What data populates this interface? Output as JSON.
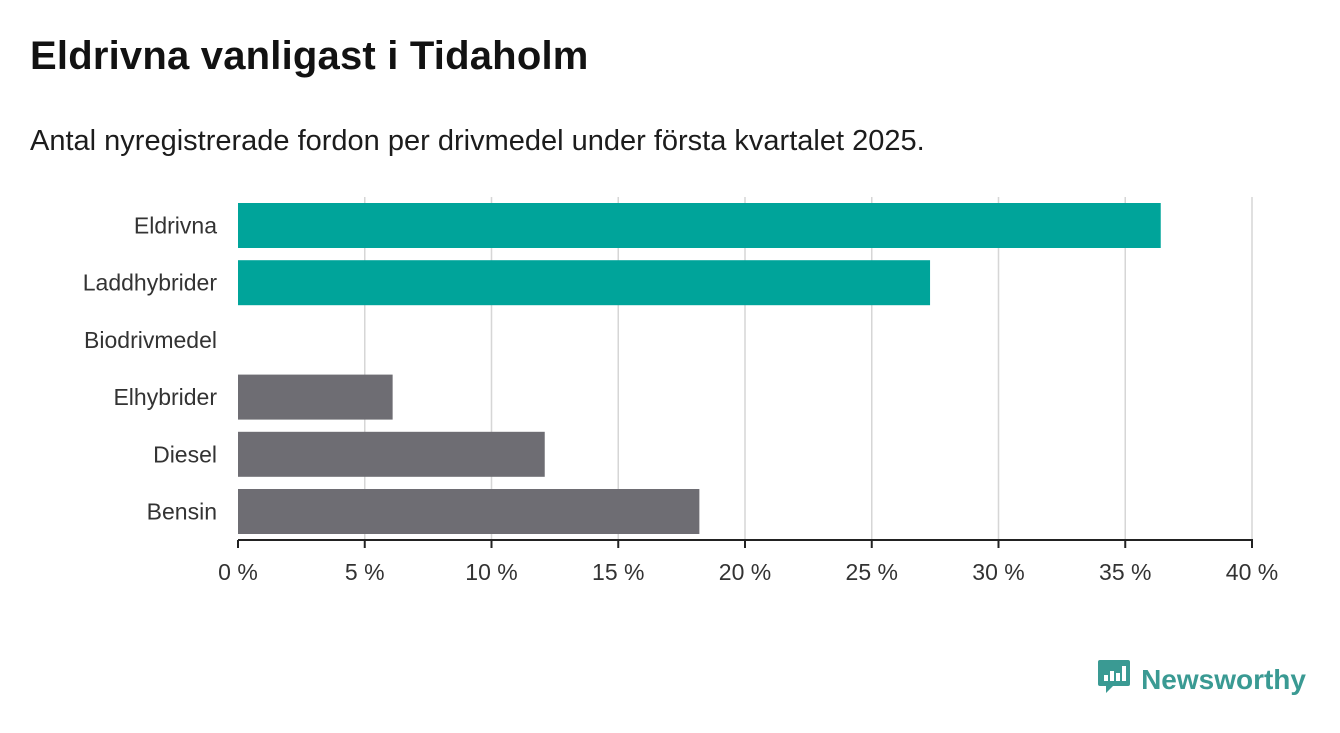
{
  "header": {
    "title": "Eldrivna vanligast i Tidaholm",
    "subtitle": "Antal nyregistrerade fordon per drivmedel under första kvartalet 2025."
  },
  "brand": {
    "name": "Newsworthy",
    "icon": "newsworthy-logo-icon",
    "color": "#3a9a93"
  },
  "colors": {
    "highlight": "#00a49a",
    "other": "#6e6d73",
    "grid": "#d6d6d6",
    "axis": "#222222"
  },
  "chart_data": {
    "type": "bar",
    "orientation": "horizontal",
    "categories": [
      "Eldrivna",
      "Laddhybrider",
      "Biodrivmedel",
      "Elhybrider",
      "Diesel",
      "Bensin"
    ],
    "values": [
      36.4,
      27.3,
      0,
      6.1,
      12.1,
      18.2
    ],
    "bar_colors": [
      "#00a49a",
      "#00a49a",
      "#6e6d73",
      "#6e6d73",
      "#6e6d73",
      "#6e6d73"
    ],
    "xlim": [
      0,
      40
    ],
    "xticks": [
      0,
      5,
      10,
      15,
      20,
      25,
      30,
      35,
      40
    ],
    "xtick_labels": [
      "0 %",
      "5 %",
      "10 %",
      "15 %",
      "20 %",
      "25 %",
      "30 %",
      "35 %",
      "40 %"
    ],
    "grid": "vertical",
    "xlabel": "",
    "ylabel": ""
  }
}
